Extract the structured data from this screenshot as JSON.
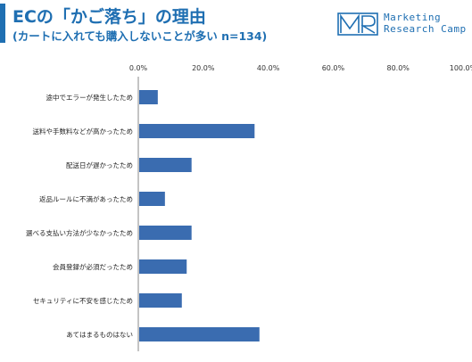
{
  "header": {
    "title": "ECの「かご落ち」の理由",
    "subtitle": "(カートに入れても購入しないことが多い n=134)",
    "title_color": "#1f6fb2",
    "accent_color": "#1f6fb2"
  },
  "logo": {
    "line1": "Marketing",
    "line2": "Research Camp",
    "color": "#1f6fb2"
  },
  "chart_data": {
    "type": "bar",
    "orientation": "horizontal",
    "xlim": [
      0,
      100
    ],
    "ticks": [
      "0.0%",
      "20.0%",
      "40.0%",
      "60.0%",
      "80.0%",
      "100.0%"
    ],
    "tick_values": [
      0,
      20,
      40,
      60,
      80,
      100
    ],
    "categories": [
      "途中でエラーが発生したため",
      "送料や手数料などが高かったため",
      "配送日が遅かったため",
      "返品ルールに不満があったため",
      "選べる支払い方法が少なかったため",
      "会員登録が必須だったため",
      "セキュリティに不安を感じたため",
      "あてはまるものはない"
    ],
    "values": [
      6.0,
      35.8,
      16.4,
      8.2,
      16.4,
      14.9,
      13.4,
      37.3
    ],
    "bar_color": "#3a6cb0",
    "grid": false,
    "legend": "none"
  }
}
